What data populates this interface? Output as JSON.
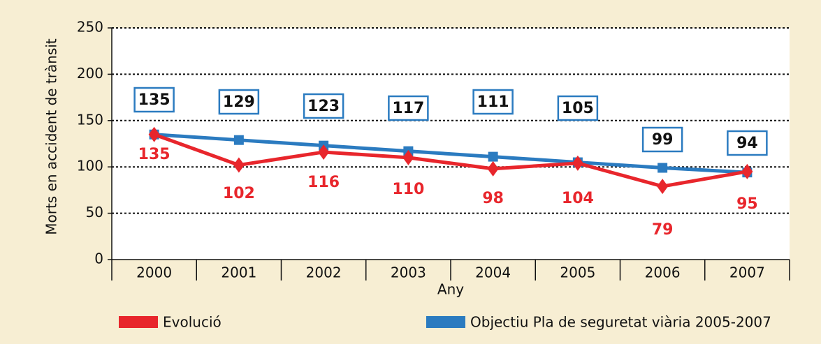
{
  "chart_data": {
    "type": "line",
    "categories": [
      "2000",
      "2001",
      "2002",
      "2003",
      "2004",
      "2005",
      "2006",
      "2007"
    ],
    "series": [
      {
        "name": "Evolució",
        "color": "#e8262c",
        "values": [
          135,
          102,
          116,
          110,
          98,
          104,
          79,
          95
        ]
      },
      {
        "name": "Objectiu Pla de seguretat viària 2005-2007",
        "color": "#2b7bc0",
        "values": [
          135,
          129,
          123,
          117,
          111,
          105,
          99,
          94
        ]
      }
    ],
    "xlabel": "Any",
    "ylabel": "Morts en accident de trànsit",
    "ylim": [
      0,
      250
    ],
    "yticks": [
      0,
      50,
      100,
      150,
      200,
      250
    ],
    "grid": true,
    "legend": "bottom"
  }
}
